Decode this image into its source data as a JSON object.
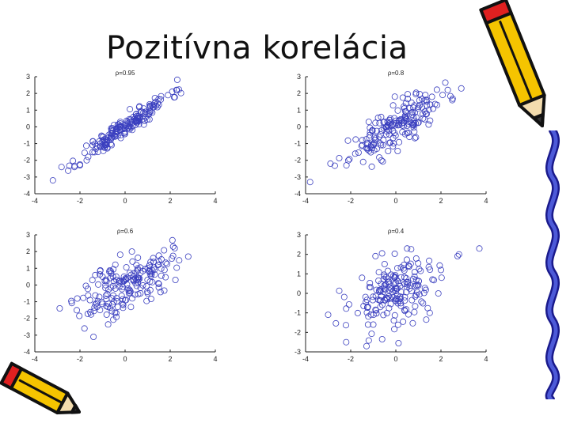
{
  "slide": {
    "title": "Pozitívna korelácia"
  },
  "chart_data": [
    {
      "type": "scatter",
      "title": "ρ=0.95",
      "rho": 0.95,
      "seed": 11,
      "xlim": [
        -4,
        4
      ],
      "ylim": [
        -4,
        3
      ],
      "xticks": [
        -4,
        -2,
        0,
        2,
        4
      ],
      "yticks": [
        -4,
        -3,
        -2,
        -1,
        0,
        1,
        2,
        3
      ],
      "point_color": "#3a3fbf",
      "points": [
        [
          -3.2,
          -3.2
        ],
        [
          -1.7,
          -2.0
        ],
        [
          -1.2,
          -1.5
        ],
        [
          -0.8,
          -0.9
        ],
        [
          -0.4,
          -0.3
        ],
        [
          0.0,
          0.1
        ],
        [
          0.5,
          0.4
        ],
        [
          0.9,
          0.9
        ],
        [
          1.3,
          1.4
        ],
        [
          1.9,
          1.9
        ],
        [
          2.3,
          2.2
        ],
        [
          -2.0,
          -2.3
        ]
      ]
    },
    {
      "type": "scatter",
      "title": "ρ=0.8",
      "rho": 0.8,
      "seed": 23,
      "xlim": [
        -4,
        4
      ],
      "ylim": [
        -4,
        3
      ],
      "xticks": [
        -4,
        -2,
        0,
        2,
        4
      ],
      "yticks": [
        -4,
        -3,
        -2,
        -1,
        0,
        1,
        2,
        3
      ],
      "point_color": "#3a3fbf",
      "points": [
        [
          -3.8,
          -3.3
        ],
        [
          -2.9,
          -2.2
        ],
        [
          -1.8,
          -1.6
        ],
        [
          -0.9,
          -0.7
        ],
        [
          -0.3,
          0.2
        ],
        [
          0.4,
          0.6
        ],
        [
          1.0,
          1.2
        ],
        [
          1.6,
          1.8
        ],
        [
          2.5,
          1.6
        ],
        [
          2.9,
          2.3
        ],
        [
          -1.2,
          0.3
        ],
        [
          0.6,
          -0.6
        ]
      ]
    },
    {
      "type": "scatter",
      "title": "ρ=0.6",
      "rho": 0.6,
      "seed": 37,
      "xlim": [
        -4,
        4
      ],
      "ylim": [
        -4,
        3
      ],
      "xticks": [
        -4,
        -2,
        0,
        2,
        4
      ],
      "yticks": [
        -4,
        -3,
        -2,
        -1,
        0,
        1,
        2,
        3
      ],
      "point_color": "#3a3fbf",
      "points": [
        [
          -2.9,
          -1.4
        ],
        [
          -1.8,
          -2.6
        ],
        [
          -1.4,
          -3.1
        ],
        [
          -1.0,
          0.5
        ],
        [
          -0.5,
          -1.0
        ],
        [
          0.0,
          0.3
        ],
        [
          0.5,
          1.2
        ],
        [
          1.0,
          -0.5
        ],
        [
          1.5,
          1.4
        ],
        [
          2.2,
          2.2
        ],
        [
          2.8,
          1.7
        ],
        [
          0.3,
          2.0
        ]
      ]
    },
    {
      "type": "scatter",
      "title": "ρ=0.4",
      "rho": 0.4,
      "seed": 53,
      "xlim": [
        -4,
        4
      ],
      "ylim": [
        -3,
        3
      ],
      "xticks": [
        -4,
        -2,
        0,
        2,
        4
      ],
      "yticks": [
        -3,
        -2,
        -1,
        0,
        1,
        2,
        3
      ],
      "point_color": "#3a3fbf",
      "points": [
        [
          -3.0,
          -1.1
        ],
        [
          -2.2,
          -2.5
        ],
        [
          -1.5,
          0.8
        ],
        [
          -1.0,
          -1.6
        ],
        [
          -0.5,
          1.5
        ],
        [
          0.0,
          -0.3
        ],
        [
          0.5,
          2.3
        ],
        [
          1.0,
          0.4
        ],
        [
          1.5,
          -1.0
        ],
        [
          2.0,
          1.2
        ],
        [
          2.8,
          2.0
        ],
        [
          3.7,
          2.3
        ]
      ]
    }
  ],
  "decorations": {
    "top_right": "pencil-icon",
    "right_edge": "squiggle-border",
    "bottom_left": "pencil-icon"
  },
  "colors": {
    "pencil_yellow": "#f5c400",
    "pencil_red": "#e02020",
    "pencil_outline": "#111111"
  }
}
